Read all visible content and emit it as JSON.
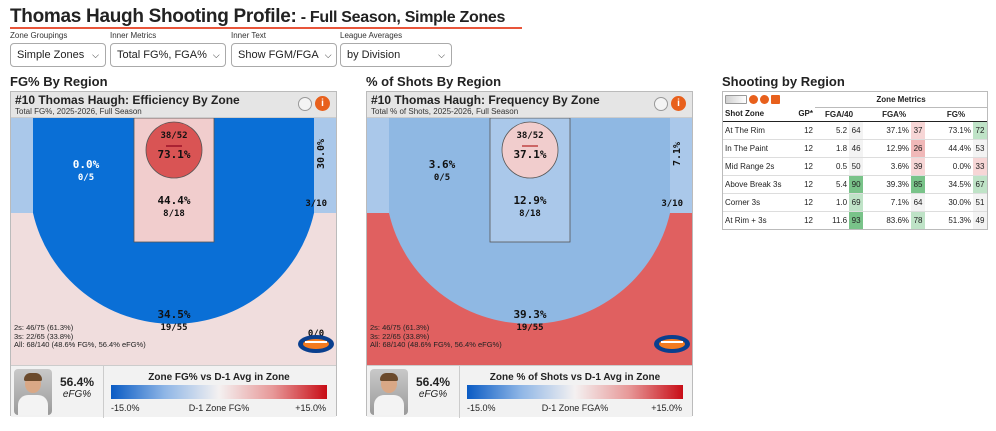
{
  "page": {
    "title": "Thomas Haugh Shooting Profile:",
    "subtitle_prefix": " - ",
    "subtitle_a": "Full Season",
    "subtitle_sep": ", ",
    "subtitle_b": "Simple Zones"
  },
  "controls": [
    {
      "label": "Zone Groupings",
      "value": "Simple Zones"
    },
    {
      "label": "Inner Metrics",
      "value": "Total FG%, FGA%"
    },
    {
      "label": "Inner Text",
      "value": "Show FGM/FGA"
    },
    {
      "label": "League Averages",
      "value": "by Division"
    }
  ],
  "sections": {
    "fg": "FG% By Region",
    "shots": "% of Shots By Region",
    "table": "Shooting by Region"
  },
  "colors": {
    "deep_blue": "#0a6fd6",
    "light_blue": "#8fb8e3",
    "pale_blue": "#aac8ea",
    "pale_red": "#f0dddd",
    "pink": "#f1cdcd",
    "red": "#d95454",
    "strong_red": "#e06060",
    "green": "#79c389",
    "light_green": "#bfe3c7",
    "accent_orange": "#e8553a"
  },
  "panel_fg": {
    "title": "#10 Thomas Haugh: Efficiency By Zone",
    "subtitle": "Total FG%, 2025-2026, Full Season",
    "zones": {
      "rim": {
        "pct": "73.1%",
        "frac": "38/52"
      },
      "paint": {
        "pct": "44.4%",
        "frac": "8/18"
      },
      "mid": {
        "pct": "0.0%",
        "frac": "0/5"
      },
      "corner3": {
        "pct": "30.0%",
        "frac": "3/10"
      },
      "break3": {
        "pct": "34.5%",
        "frac": "19/55"
      },
      "other": {
        "frac": "0/0"
      }
    },
    "stats": [
      "2s: 46/75 (61.3%)",
      "3s: 22/65 (33.8%)",
      "All: 68/140 (48.6% FG%, 56.4% eFG%)"
    ],
    "efg_value": "56.4%",
    "efg_label": "eFG%",
    "legend_title": "Zone FG% vs D-1 Avg in Zone",
    "legend_min": "-15.0%",
    "legend_mid": "D-1 Zone FG%",
    "legend_max": "+15.0%"
  },
  "panel_shots": {
    "title": "#10 Thomas Haugh: Frequency By Zone",
    "subtitle": "Total % of Shots, 2025-2026, Full Season",
    "zones": {
      "rim": {
        "pct": "37.1%",
        "frac": "38/52"
      },
      "paint": {
        "pct": "12.9%",
        "frac": "8/18"
      },
      "mid": {
        "pct": "3.6%",
        "frac": "0/5"
      },
      "corner3": {
        "pct": "7.1%",
        "frac": "3/10"
      },
      "break3": {
        "pct": "39.3%",
        "frac": "19/55"
      }
    },
    "stats": [
      "2s: 46/75 (61.3%)",
      "3s: 22/65 (33.8%)",
      "All: 68/140 (48.6% FG%, 56.4% eFG%)"
    ],
    "efg_value": "56.4%",
    "efg_label": "eFG%",
    "legend_title": "Zone % of Shots vs D-1 Avg in Zone",
    "legend_min": "-15.0%",
    "legend_mid": "D-1 Zone FGA%",
    "legend_max": "+15.0%"
  },
  "table": {
    "group_header": "Zone Metrics",
    "columns": [
      "Shot Zone",
      "GP*",
      "FGA/40",
      "FGA%",
      "FG%"
    ],
    "rows": [
      {
        "zone": "At The Rim",
        "gp": "12",
        "fga40": "5.2",
        "fga40_pct": "64",
        "fga_pct": "37.1%",
        "fga_pct_pct": "37",
        "fg": "73.1%",
        "fg_pct": "72"
      },
      {
        "zone": "In The Paint",
        "gp": "12",
        "fga40": "1.8",
        "fga40_pct": "46",
        "fga_pct": "12.9%",
        "fga_pct_pct": "26",
        "fg": "44.4%",
        "fg_pct": "53"
      },
      {
        "zone": "Mid Range 2s",
        "gp": "12",
        "fga40": "0.5",
        "fga40_pct": "50",
        "fga_pct": "3.6%",
        "fga_pct_pct": "39",
        "fg": "0.0%",
        "fg_pct": "33"
      },
      {
        "zone": "Above Break 3s",
        "gp": "12",
        "fga40": "5.4",
        "fga40_pct": "90",
        "fga_pct": "39.3%",
        "fga_pct_pct": "85",
        "fg": "34.5%",
        "fg_pct": "67"
      },
      {
        "zone": "Corner 3s",
        "gp": "12",
        "fga40": "1.0",
        "fga40_pct": "69",
        "fga_pct": "7.1%",
        "fga_pct_pct": "64",
        "fg": "30.0%",
        "fg_pct": "51"
      },
      {
        "zone": "At Rim + 3s",
        "gp": "12",
        "fga40": "11.6",
        "fga40_pct": "93",
        "fga_pct": "83.6%",
        "fga_pct_pct": "78",
        "fg": "51.3%",
        "fg_pct": "49"
      }
    ]
  }
}
